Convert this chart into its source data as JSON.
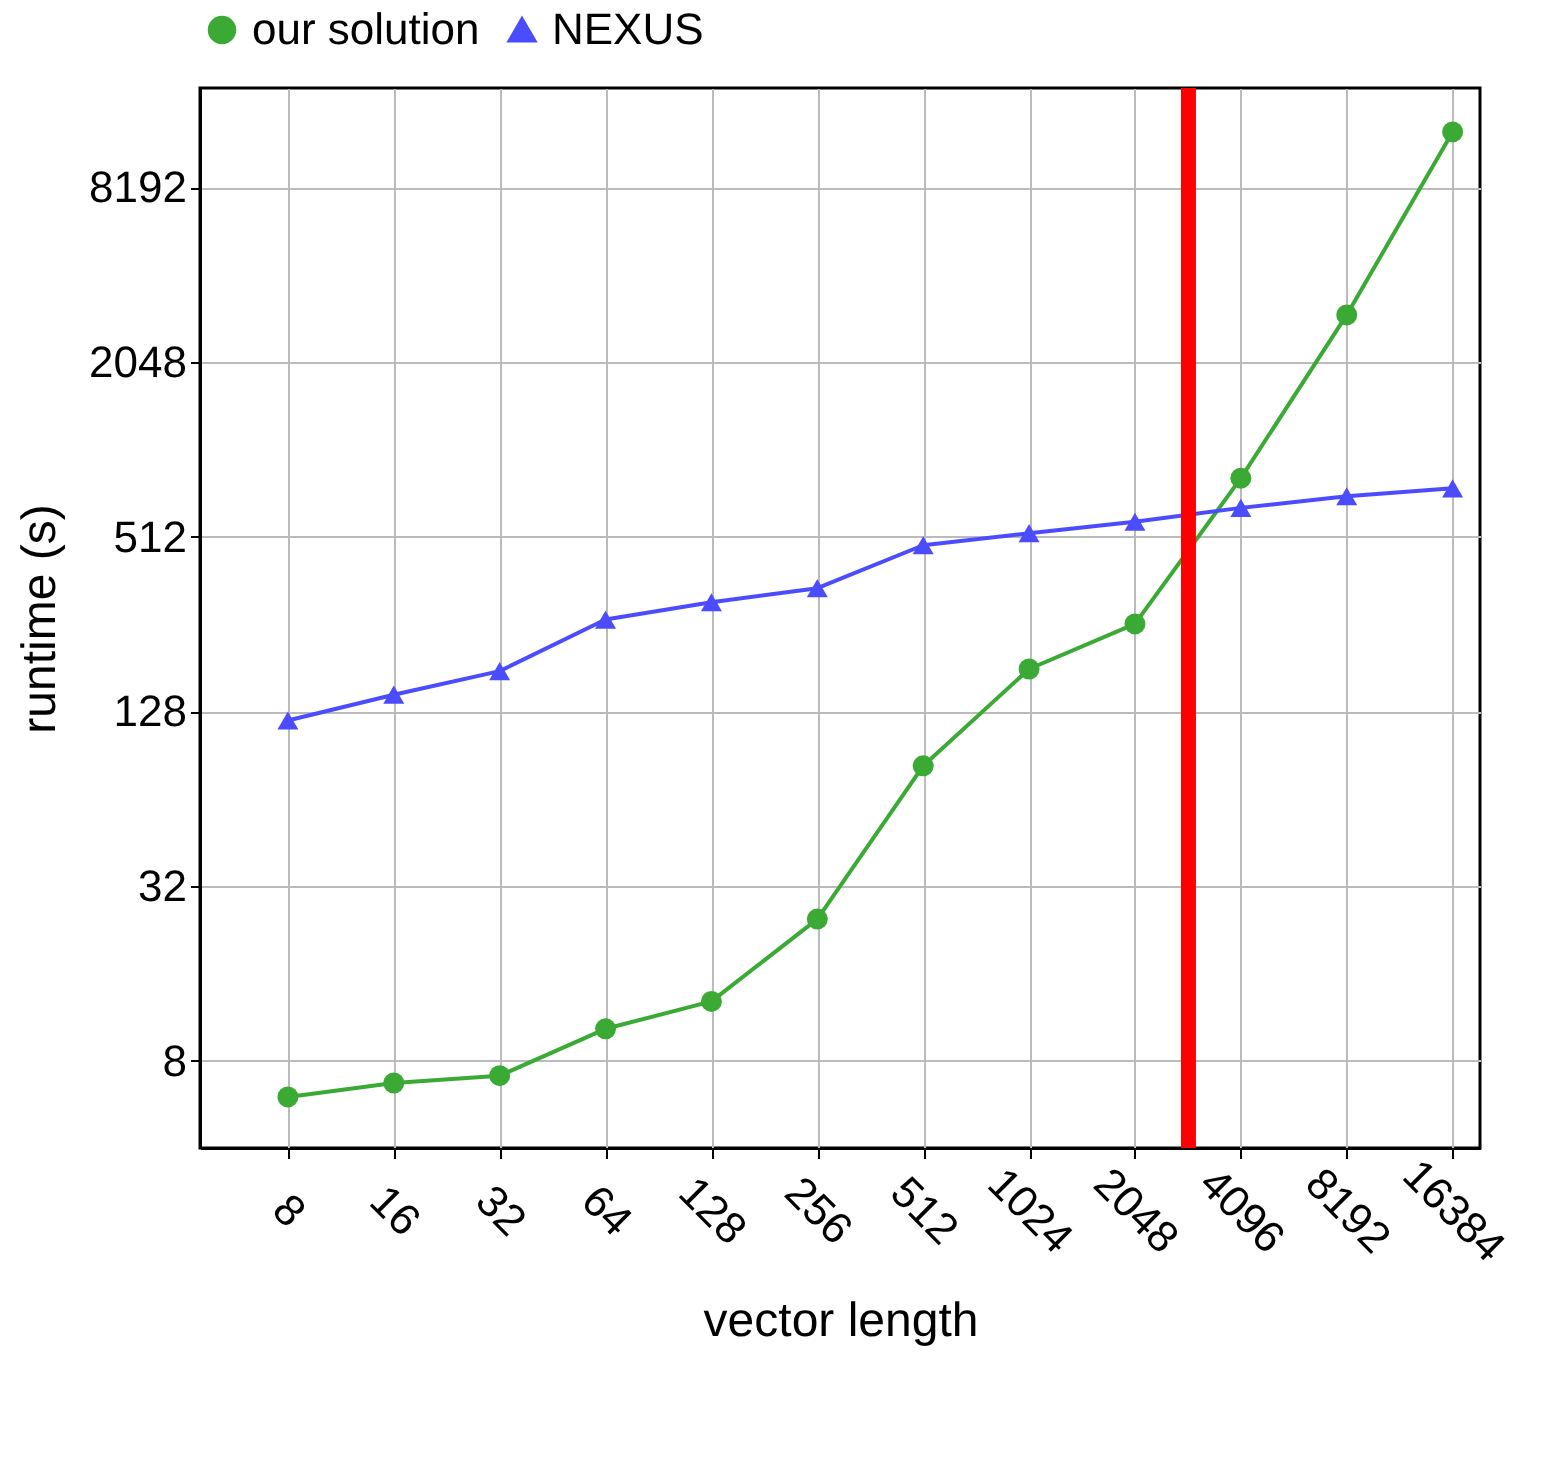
{
  "chart_data": {
    "type": "line",
    "xlabel": "vector length",
    "ylabel": "runtime (s)",
    "x": [
      8,
      16,
      32,
      64,
      128,
      256,
      512,
      1024,
      2048,
      4096,
      8192,
      16384
    ],
    "series": [
      {
        "name": "our solution",
        "color": "#3aaa35",
        "marker": "circle",
        "values": [
          6.0,
          6.7,
          7.1,
          10.3,
          12.8,
          24.6,
          83,
          179,
          256,
          814,
          2973,
          12700
        ]
      },
      {
        "name": "NEXUS",
        "color": "#4c4cff",
        "marker": "triangle",
        "values": [
          119,
          146,
          176,
          265,
          304,
          340,
          478,
          526,
          576,
          643,
          705,
          751
        ]
      }
    ],
    "log": "xy",
    "xlim": [
      4.5,
      19600
    ],
    "ylim": [
      4,
      18000
    ],
    "xticks": [
      8,
      16,
      32,
      64,
      128,
      256,
      512,
      1024,
      2048,
      4096,
      8192,
      16384
    ],
    "yticks": [
      8,
      32,
      128,
      512,
      2048,
      8192
    ],
    "ref_lines": [
      {
        "axis": "x",
        "value": 2900,
        "color": "#ff0000"
      }
    ],
    "grid": true,
    "legend": "top",
    "line_style": "solid"
  }
}
